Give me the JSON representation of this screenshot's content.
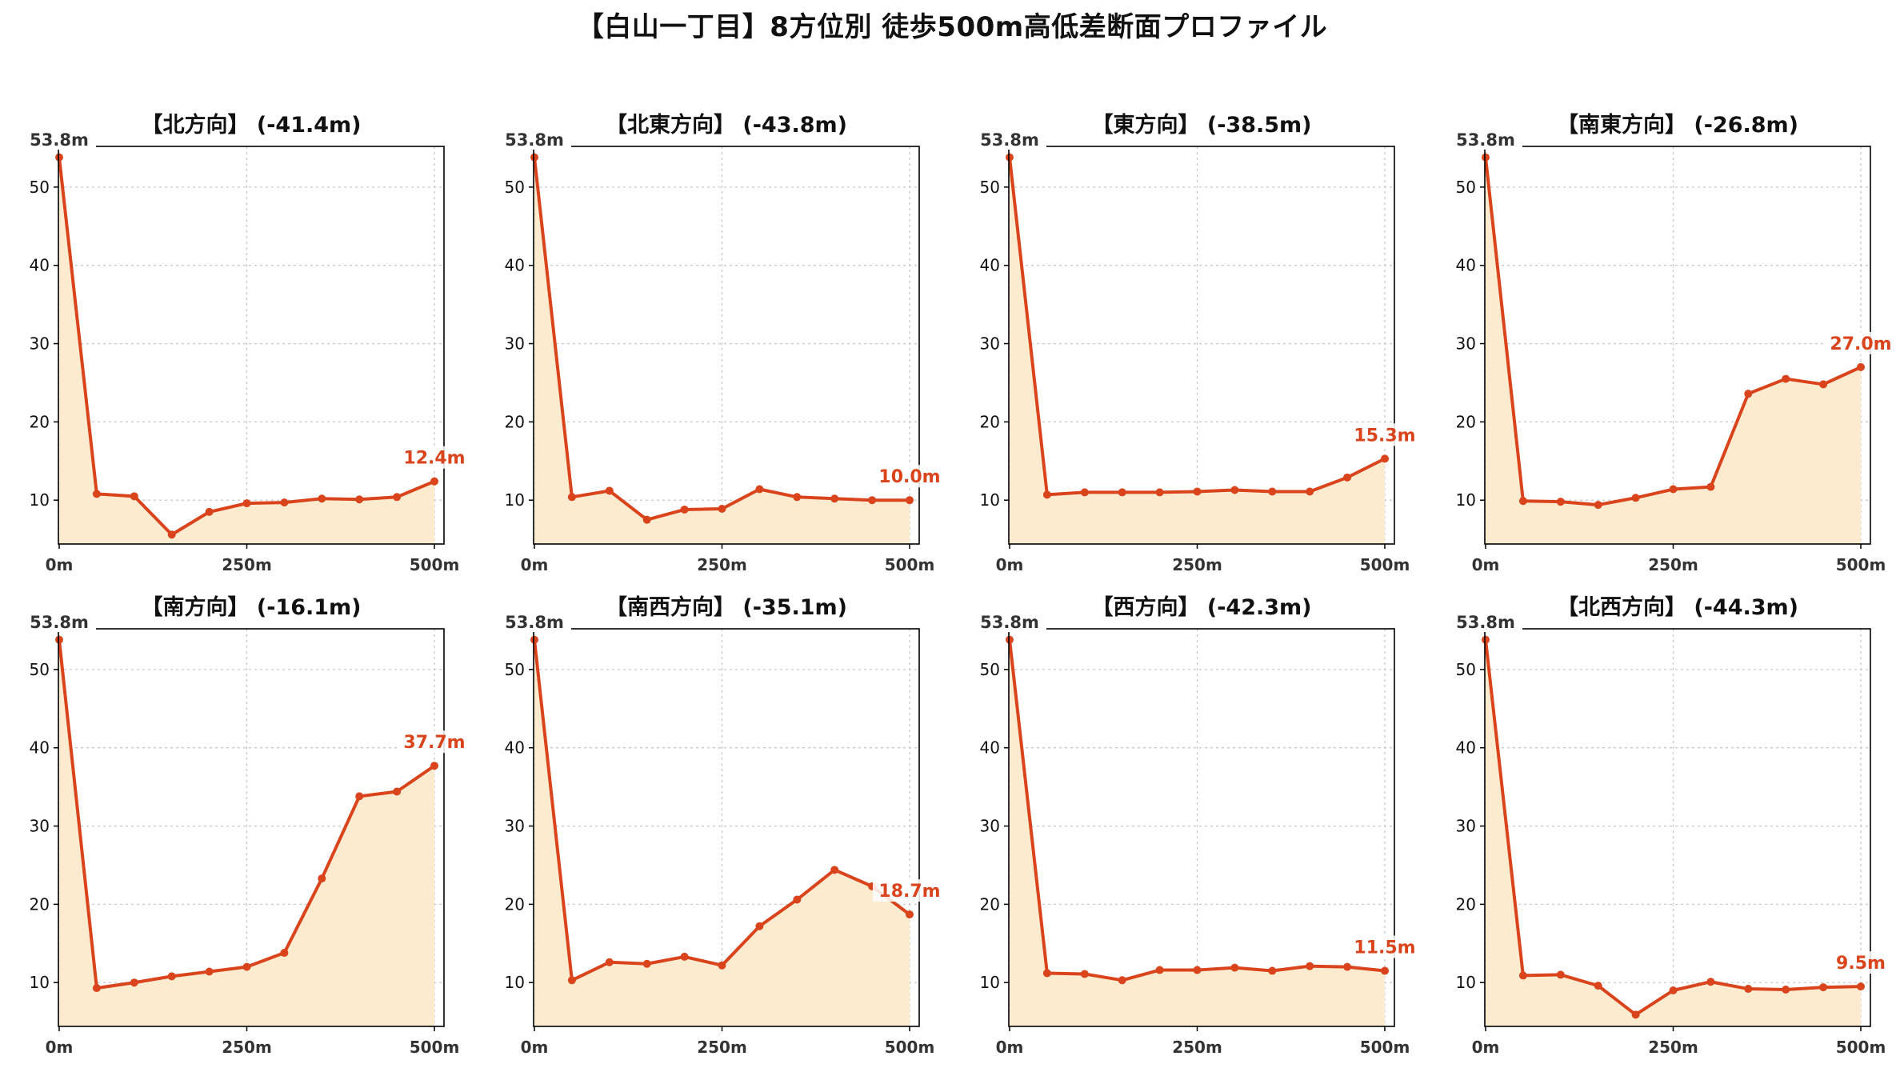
{
  "title": "【白山一丁目】8方位別 徒歩500m高低差断面プロファイル",
  "colors": {
    "line": "#d9441c",
    "fill": "#fdebd0",
    "grid": "#c8c8c8",
    "axis": "#000000",
    "text": "#111111"
  },
  "chart_data": [
    {
      "type": "area",
      "title": "【北方向】 (-41.4m)",
      "x": [
        0,
        50,
        100,
        150,
        200,
        250,
        300,
        350,
        400,
        450,
        500
      ],
      "y": [
        53.8,
        10.8,
        10.5,
        5.6,
        8.5,
        9.6,
        9.7,
        10.2,
        10.1,
        10.4,
        12.4
      ],
      "xticks": [
        "0m",
        "250m",
        "500m"
      ],
      "yticks": [
        10,
        20,
        30,
        40,
        50
      ],
      "start_label": "53.8m",
      "end_label": "12.4m",
      "ylim": [
        4.4,
        55.2
      ],
      "grid": true
    },
    {
      "type": "area",
      "title": "【北東方向】 (-43.8m)",
      "x": [
        0,
        50,
        100,
        150,
        200,
        250,
        300,
        350,
        400,
        450,
        500
      ],
      "y": [
        53.8,
        10.4,
        11.2,
        7.5,
        8.8,
        8.9,
        11.4,
        10.4,
        10.2,
        10.0,
        10.0
      ],
      "xticks": [
        "0m",
        "250m",
        "500m"
      ],
      "yticks": [
        10,
        20,
        30,
        40,
        50
      ],
      "start_label": "53.8m",
      "end_label": "10.0m",
      "ylim": [
        4.4,
        55.2
      ],
      "grid": true
    },
    {
      "type": "area",
      "title": "【東方向】 (-38.5m)",
      "x": [
        0,
        50,
        100,
        150,
        200,
        250,
        300,
        350,
        400,
        450,
        500
      ],
      "y": [
        53.8,
        10.7,
        11.0,
        11.0,
        11.0,
        11.1,
        11.3,
        11.1,
        11.1,
        12.9,
        15.3
      ],
      "xticks": [
        "0m",
        "250m",
        "500m"
      ],
      "yticks": [
        10,
        20,
        30,
        40,
        50
      ],
      "start_label": "53.8m",
      "end_label": "15.3m",
      "ylim": [
        4.4,
        55.2
      ],
      "grid": true
    },
    {
      "type": "area",
      "title": "【南東方向】 (-26.8m)",
      "x": [
        0,
        50,
        100,
        150,
        200,
        250,
        300,
        350,
        400,
        450,
        500
      ],
      "y": [
        53.8,
        9.9,
        9.8,
        9.4,
        10.3,
        11.4,
        11.7,
        23.6,
        25.5,
        24.8,
        27.0
      ],
      "xticks": [
        "0m",
        "250m",
        "500m"
      ],
      "yticks": [
        10,
        20,
        30,
        40,
        50
      ],
      "start_label": "53.8m",
      "end_label": "27.0m",
      "ylim": [
        4.4,
        55.2
      ],
      "grid": true
    },
    {
      "type": "area",
      "title": "【南方向】 (-16.1m)",
      "x": [
        0,
        50,
        100,
        150,
        200,
        250,
        300,
        350,
        400,
        450,
        500
      ],
      "y": [
        53.8,
        9.3,
        10.0,
        10.8,
        11.4,
        12.0,
        13.8,
        23.3,
        33.8,
        34.4,
        37.7
      ],
      "xticks": [
        "0m",
        "250m",
        "500m"
      ],
      "yticks": [
        10,
        20,
        30,
        40,
        50
      ],
      "start_label": "53.8m",
      "end_label": "37.7m",
      "ylim": [
        4.4,
        55.2
      ],
      "grid": true
    },
    {
      "type": "area",
      "title": "【南西方向】 (-35.1m)",
      "x": [
        0,
        50,
        100,
        150,
        200,
        250,
        300,
        350,
        400,
        450,
        500
      ],
      "y": [
        53.8,
        10.3,
        12.6,
        12.4,
        13.3,
        12.2,
        17.2,
        20.6,
        24.4,
        22.3,
        18.7
      ],
      "xticks": [
        "0m",
        "250m",
        "500m"
      ],
      "yticks": [
        10,
        20,
        30,
        40,
        50
      ],
      "start_label": "53.8m",
      "end_label": "18.7m",
      "ylim": [
        4.4,
        55.2
      ],
      "grid": true
    },
    {
      "type": "area",
      "title": "【西方向】 (-42.3m)",
      "x": [
        0,
        50,
        100,
        150,
        200,
        250,
        300,
        350,
        400,
        450,
        500
      ],
      "y": [
        53.8,
        11.2,
        11.1,
        10.3,
        11.6,
        11.6,
        11.9,
        11.5,
        12.1,
        12.0,
        11.5
      ],
      "xticks": [
        "0m",
        "250m",
        "500m"
      ],
      "yticks": [
        10,
        20,
        30,
        40,
        50
      ],
      "start_label": "53.8m",
      "end_label": "11.5m",
      "ylim": [
        4.4,
        55.2
      ],
      "grid": true
    },
    {
      "type": "area",
      "title": "【北西方向】 (-44.3m)",
      "x": [
        0,
        50,
        100,
        150,
        200,
        250,
        300,
        350,
        400,
        450,
        500
      ],
      "y": [
        53.8,
        10.9,
        11.0,
        9.6,
        5.9,
        9.0,
        10.1,
        9.2,
        9.1,
        9.4,
        9.5
      ],
      "xticks": [
        "0m",
        "250m",
        "500m"
      ],
      "yticks": [
        10,
        20,
        30,
        40,
        50
      ],
      "start_label": "53.8m",
      "end_label": "9.5m",
      "ylim": [
        4.4,
        55.2
      ],
      "grid": true
    }
  ]
}
